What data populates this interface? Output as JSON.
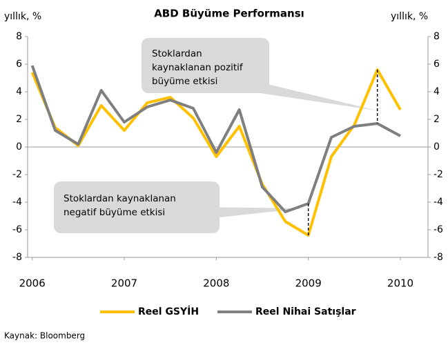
{
  "chart_data": {
    "type": "line",
    "title": "ABD Büyüme Performansı",
    "y_label": "yıllık, %",
    "y2_label": "yıllık, %",
    "x": [
      2006,
      2006.25,
      2006.5,
      2006.75,
      2007,
      2007.25,
      2007.5,
      2007.75,
      2008,
      2008.25,
      2008.5,
      2008.75,
      2009,
      2009.25,
      2009.5,
      2009.75,
      2010
    ],
    "xlim": [
      2005.95,
      2010.3
    ],
    "xticks": [
      2006,
      2007,
      2008,
      2009,
      2010
    ],
    "ylim": [
      -8,
      8
    ],
    "yticks": [
      -8,
      -6,
      -4,
      -2,
      0,
      2,
      4,
      6,
      8
    ],
    "y2lim": [
      -8,
      8
    ],
    "y2ticks": [
      -8,
      -6,
      -4,
      -2,
      0,
      2,
      4,
      6,
      8
    ],
    "series": [
      {
        "name": "Reel GSYİH",
        "color": "#ffc000",
        "values": [
          5.4,
          1.4,
          0.1,
          3.0,
          1.2,
          3.2,
          3.6,
          2.1,
          -0.7,
          1.5,
          -2.7,
          -5.4,
          -6.4,
          -0.7,
          1.6,
          5.6,
          2.7
        ]
      },
      {
        "name": "Reel Nihai Satışlar",
        "color": "#7f7f7f",
        "values": [
          5.9,
          1.2,
          0.2,
          4.1,
          1.8,
          2.9,
          3.4,
          2.8,
          -0.4,
          2.7,
          -2.9,
          -4.7,
          -4.1,
          0.7,
          1.5,
          1.7,
          0.8
        ]
      }
    ],
    "annotations": [
      {
        "lines": [
          "Stoklardan",
          "kaynaklanan pozitif",
          "büyüme etkisi"
        ]
      },
      {
        "lines": [
          "Stoklardan kaynaklanan",
          "negatif büyüme etkisi"
        ]
      }
    ],
    "source": "Kaynak: Bloomberg"
  }
}
